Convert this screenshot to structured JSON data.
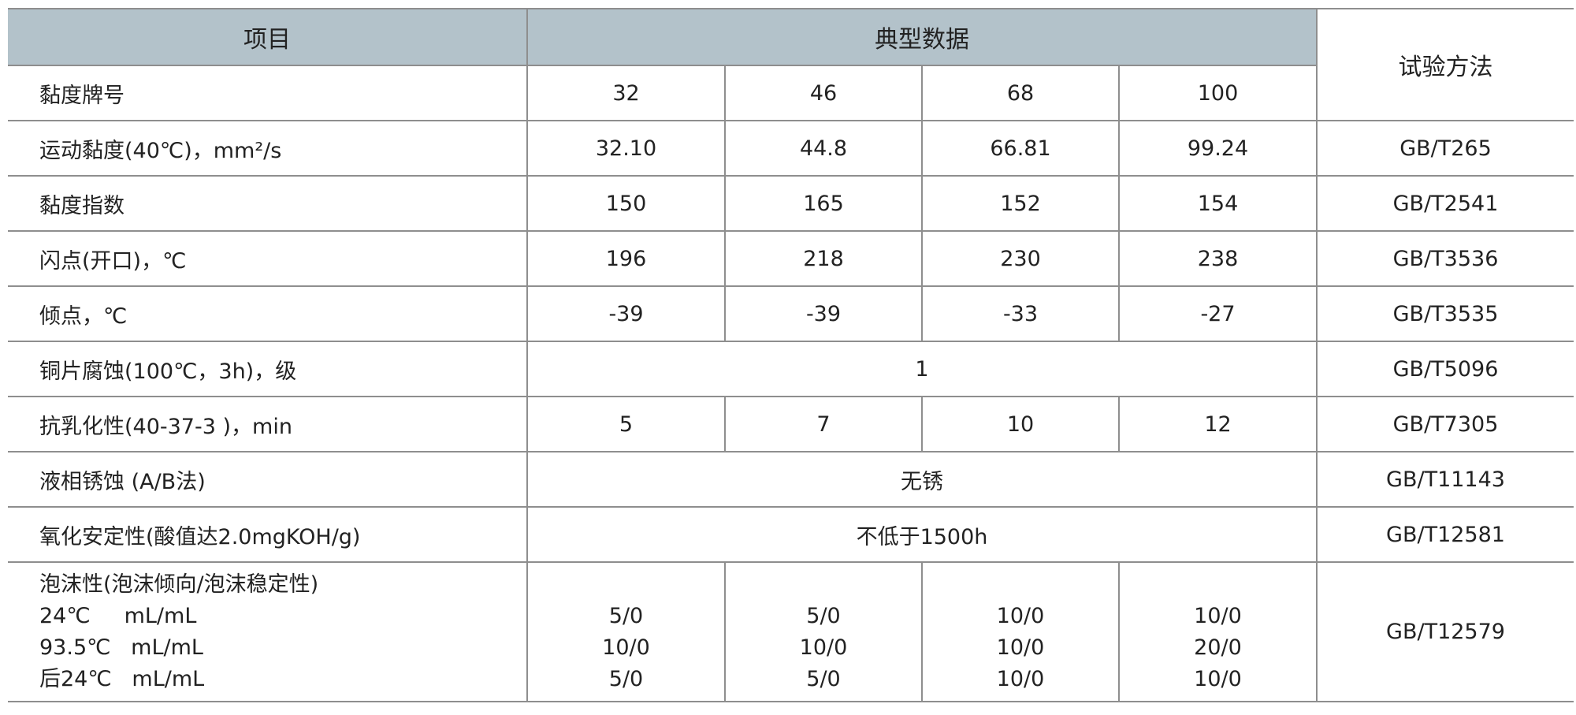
{
  "header": {
    "item": "项目",
    "typical": "典型数据",
    "method": "试验方法"
  },
  "rows": [
    {
      "item": "黏度牌号",
      "values": [
        "32",
        "46",
        "68",
        "100"
      ],
      "method": ""
    },
    {
      "item": "运动黏度(40℃)，mm²/s",
      "values": [
        "32.10",
        "44.8",
        "66.81",
        "99.24"
      ],
      "method": "GB/T265"
    },
    {
      "item": "黏度指数",
      "values": [
        "150",
        "165",
        "152",
        "154"
      ],
      "method": "GB/T2541"
    },
    {
      "item": "闪点(开口)，℃",
      "values": [
        "196",
        "218",
        "230",
        "238"
      ],
      "method": "GB/T3536"
    },
    {
      "item": "倾点，℃",
      "values": [
        "-39",
        "-39",
        "-33",
        "-27"
      ],
      "method": "GB/T3535"
    },
    {
      "item": "铜片腐蚀(100℃，3h)，级",
      "merged": "1",
      "method": "GB/T5096"
    },
    {
      "item": "抗乳化性(40-37-3 )，min",
      "values": [
        "5",
        "7",
        "10",
        "12"
      ],
      "method": "GB/T7305"
    },
    {
      "item": "液相锈蚀 (A/B法)",
      "merged": "无锈",
      "method": "GB/T11143"
    },
    {
      "item": "氧化安定性(酸值达2.0mgKOH/g)",
      "merged": "不低于1500h",
      "method": "GB/T12581"
    }
  ],
  "foam": {
    "item_lines": [
      "泡沫性(泡沫倾向/泡沫稳定性)",
      "24℃     mL/mL",
      "93.5℃   mL/mL",
      "后24℃   mL/mL"
    ],
    "columns": [
      [
        "5/0",
        "10/0",
        "5/0"
      ],
      [
        "5/0",
        "10/0",
        "5/0"
      ],
      [
        "10/0",
        "10/0",
        "10/0"
      ],
      [
        "10/0",
        "20/0",
        "10/0"
      ]
    ],
    "method": "GB/T12579"
  }
}
